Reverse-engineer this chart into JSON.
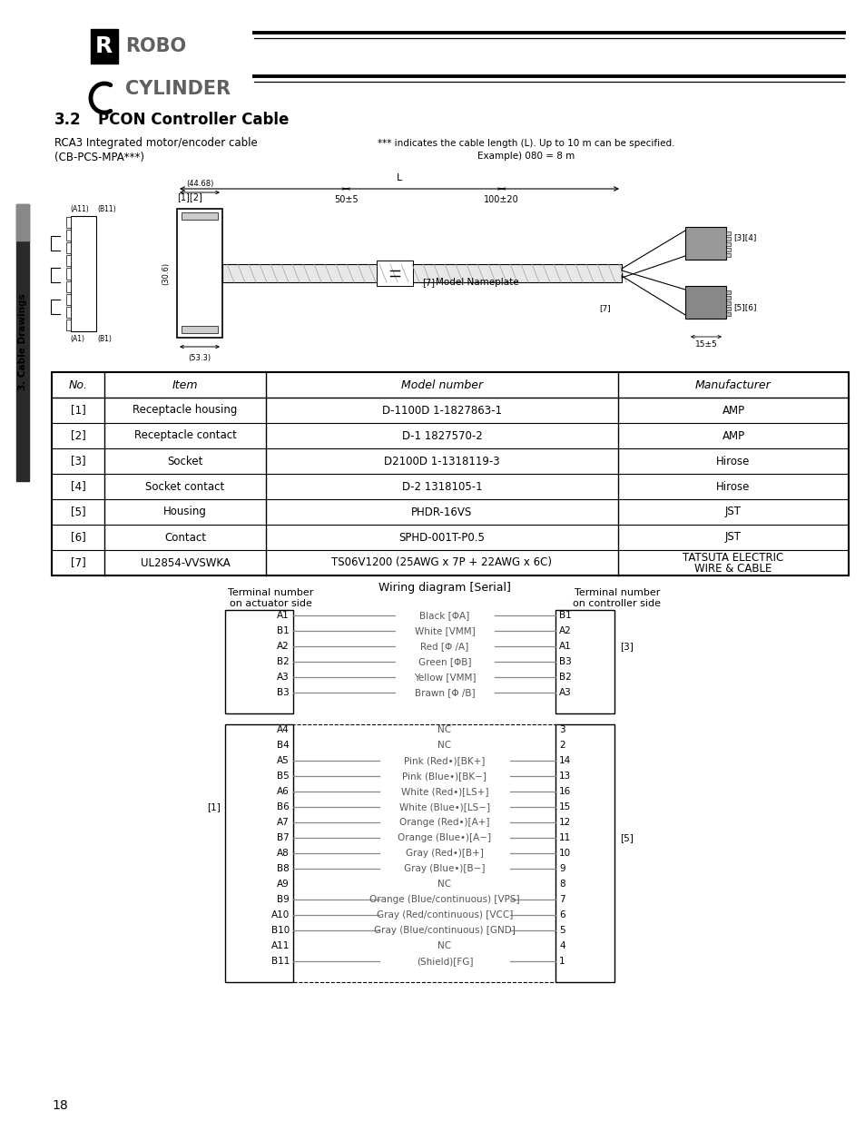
{
  "title_num": "3.2",
  "title_text": "PCON Controller Cable",
  "subtitle_line1": "RCA3 Integrated motor/encoder cable",
  "subtitle_line2": "(CB-PCS-MPA***)",
  "note1": "*** indicates the cable length (L). Up to 10 m can be specified.",
  "note2": "Example) 080 = 8 m",
  "section_label": "3. Cable Drawings",
  "table_headers": [
    "No.",
    "Item",
    "Model number",
    "Manufacturer"
  ],
  "table_rows": [
    [
      "[1]",
      "Receptacle housing",
      "D-1100D 1-1827863-1",
      "AMP"
    ],
    [
      "[2]",
      "Receptacle contact",
      "D-1 1827570-2",
      "AMP"
    ],
    [
      "[3]",
      "Socket",
      "D2100D 1-1318119-3",
      "Hirose"
    ],
    [
      "[4]",
      "Socket contact",
      "D-2 1318105-1",
      "Hirose"
    ],
    [
      "[5]",
      "Housing",
      "PHDR-16VS",
      "JST"
    ],
    [
      "[6]",
      "Contact",
      "SPHD-001T-P0.5",
      "JST"
    ],
    [
      "[7]",
      "UL2854-VVSWKA",
      "TS06V1200 (25AWG x 7P + 22AWG x 6C)",
      "TATSUTA ELECTRIC\nWIRE & CABLE"
    ]
  ],
  "wiring_title": "Wiring diagram [Serial]",
  "actuator_label": "Terminal number\non actuator side",
  "controller_label": "Terminal number\non controller side",
  "left_terms1": [
    "A1",
    "B1",
    "A2",
    "B2",
    "A3",
    "B3"
  ],
  "right_terms1": [
    "B1",
    "A2",
    "A1",
    "B3",
    "B2",
    "A3"
  ],
  "wire_labels1": [
    "Black [ΦA]",
    "White [VMM]",
    "Red [Φ /A]",
    "Green [ΦB]",
    "Yellow [VMM]",
    "Brawn [Φ /B]"
  ],
  "left_terms2": [
    "A4",
    "B4",
    "A5",
    "B5",
    "A6",
    "B6",
    "A7",
    "B7",
    "A8",
    "B8",
    "A9",
    "B9",
    "A10",
    "B10",
    "A11",
    "B11"
  ],
  "right_terms2": [
    "3",
    "2",
    "14",
    "13",
    "16",
    "15",
    "12",
    "11",
    "10",
    "9",
    "8",
    "7",
    "6",
    "5",
    "4",
    "1"
  ],
  "wire_labels2": [
    "NC",
    "NC",
    "Pink (Red•)[BK+]",
    "Pink (Blue•)[BK−]",
    "White (Red•)[LS+]",
    "White (Blue•)[LS−]",
    "Orange (Red•)[A+]",
    "Orange (Blue•)[A−]",
    "Gray (Red•)[B+]",
    "Gray (Blue•)[B−]",
    "NC",
    "Orange (Blue/continuous) [VPS]",
    "Gray (Red/continuous) [VCC]",
    "Gray (Blue/continuous) [GND]",
    "NC",
    "(Shield)[FG]"
  ],
  "nc_indices2": [
    0,
    1,
    10,
    14
  ],
  "page_number": "18",
  "bg_color": "#ffffff"
}
